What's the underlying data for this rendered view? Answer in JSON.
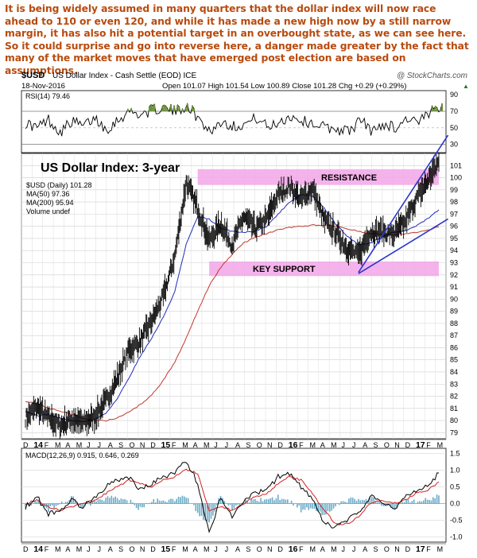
{
  "commentary": "It is being widely assumed in many quarters that the dollar index will now race ahead to 110 or even 120, and while it has made a new high now by a still narrow margin, it has also hit a potential target in an overbought state, as we can see here. So it could surprise and go into reverse here, a danger made greater by the fact that many of the market moves that have emerged post election are based on assumptions.",
  "header": {
    "symbol": "$USD",
    "name": "US Dollar Index - Cash Settle (EOD) ICE",
    "watermark": "@ StockCharts.com",
    "date": "18-Nov-2016",
    "ohlc": "Open 101.07  High 101.54  Low 100.89  Close 101.28  Chg +0.29 (+0.29%)",
    "change_marker": "▲"
  },
  "colors": {
    "price": "#000000",
    "ma50": "#1f2db8",
    "ma200": "#c0392b",
    "rsi_fill": "#6b8f3a",
    "zone": "#f2a6e8",
    "trendline": "#2b36c9",
    "title": "#2b36c9",
    "macd_hist": "#3b8fb5"
  },
  "months": [
    "D",
    "J",
    "F",
    "M",
    "A",
    "M",
    "J",
    "J",
    "A",
    "S",
    "O",
    "N",
    "D",
    "J",
    "F",
    "M",
    "A",
    "M",
    "J",
    "J",
    "A",
    "S",
    "O",
    "N",
    "D",
    "J",
    "F",
    "M",
    "A",
    "M",
    "J",
    "J",
    "A",
    "S",
    "O",
    "N",
    "D",
    "J",
    "F",
    "M"
  ],
  "month_year_labels": {
    "1": "14",
    "13": "15",
    "25": "16",
    "37": "17"
  },
  "chart_data": [
    {
      "type": "line",
      "panel": "RSI",
      "legend": "RSI(14) 79.46",
      "ylim": [
        20,
        95
      ],
      "yticks": [
        30,
        50,
        70,
        90
      ],
      "guides": [
        30,
        70
      ],
      "x": [
        0,
        1,
        2,
        3,
        4,
        5,
        6,
        7,
        8,
        9,
        10,
        11,
        12,
        13,
        14,
        15,
        16,
        17,
        18,
        19,
        20,
        21,
        22,
        23,
        24,
        25,
        26,
        27,
        28,
        29,
        30,
        31,
        32,
        33,
        34,
        35,
        36
      ],
      "values": [
        56,
        50,
        60,
        45,
        58,
        52,
        62,
        48,
        60,
        70,
        66,
        72,
        74,
        70,
        78,
        60,
        46,
        58,
        52,
        55,
        62,
        50,
        58,
        64,
        58,
        55,
        50,
        48,
        46,
        60,
        45,
        55,
        50,
        62,
        56,
        68,
        79.46
      ]
    },
    {
      "type": "line",
      "panel": "Price",
      "title": "US Dollar Index: 3-year",
      "legend": [
        "$USD (Daily) 101.28",
        "MA(50) 97.36",
        "MA(200) 95.94",
        "Volume undef"
      ],
      "ylim": [
        78.5,
        102
      ],
      "yticks": [
        79,
        80,
        81,
        82,
        83,
        84,
        85,
        86,
        87,
        88,
        89,
        90,
        91,
        92,
        93,
        94,
        95,
        96,
        97,
        98,
        99,
        100,
        101
      ],
      "x": [
        0,
        1,
        2,
        3,
        4,
        5,
        6,
        7,
        8,
        9,
        10,
        11,
        12,
        13,
        14,
        15,
        16,
        17,
        18,
        19,
        20,
        21,
        22,
        23,
        24,
        25,
        26,
        27,
        28,
        29,
        30,
        31,
        32,
        33,
        34,
        35,
        36
      ],
      "series": [
        {
          "name": "$USD (Daily) 101.28",
          "values": [
            80.2,
            81.1,
            80.2,
            79.6,
            80.1,
            79.8,
            80.3,
            81.6,
            83.5,
            85.8,
            86.5,
            88.2,
            90.2,
            93.5,
            99.6,
            97.5,
            94.8,
            96.2,
            94.5,
            96.8,
            95.8,
            96.6,
            98.6,
            99.3,
            98.2,
            99.1,
            96.5,
            95.5,
            94.2,
            93.6,
            95.5,
            95.6,
            95.3,
            96.2,
            98.2,
            99.7,
            101.28
          ]
        },
        {
          "name": "MA(50) 97.36",
          "values": [
            80.8,
            80.4,
            80.5,
            80.2,
            80.0,
            79.9,
            80.1,
            80.6,
            81.8,
            83.5,
            85.3,
            86.8,
            88.5,
            90.6,
            94.5,
            96.8,
            96.6,
            95.8,
            95.6,
            95.5,
            95.6,
            96.0,
            97.0,
            98.0,
            98.6,
            98.5,
            97.5,
            96.2,
            95.2,
            94.5,
            94.6,
            95.1,
            95.5,
            95.6,
            96.0,
            96.6,
            97.36
          ]
        },
        {
          "name": "MA(200) 95.94",
          "values": [
            81.6,
            81.4,
            81.0,
            80.8,
            80.5,
            80.2,
            80.0,
            80.0,
            80.2,
            80.7,
            81.3,
            82.1,
            83.3,
            84.8,
            86.8,
            89.0,
            91.1,
            92.6,
            93.7,
            94.6,
            95.1,
            95.4,
            95.7,
            95.9,
            96.0,
            96.1,
            96.1,
            96.0,
            95.8,
            95.6,
            95.4,
            95.3,
            95.3,
            95.4,
            95.5,
            95.7,
            95.94
          ]
        }
      ],
      "zones": [
        {
          "label": "RESISTANCE",
          "from": 99.4,
          "to": 100.7,
          "x_from": 15,
          "x_to": 36
        },
        {
          "label": "KEY SUPPORT",
          "from": 91.9,
          "to": 93.1,
          "x_from": 16,
          "x_to": 36
        }
      ],
      "trendlines": [
        {
          "x": [
            29,
            36.8
          ],
          "y": [
            92.2,
            103.5
          ]
        },
        {
          "x": [
            29,
            36.8
          ],
          "y": [
            92.1,
            96.6
          ]
        }
      ]
    },
    {
      "type": "line",
      "panel": "MACD",
      "legend": "MACD(12,26,9) 0.915, 0.646, 0.269",
      "ylim": [
        -1.15,
        1.65
      ],
      "yticks": [
        -1.0,
        -0.5,
        0.0,
        0.5,
        1.0,
        1.5
      ],
      "x": [
        0,
        1,
        2,
        3,
        4,
        5,
        6,
        7,
        8,
        9,
        10,
        11,
        12,
        13,
        14,
        15,
        16,
        17,
        18,
        19,
        20,
        21,
        22,
        23,
        24,
        25,
        26,
        27,
        28,
        29,
        30,
        31,
        32,
        33,
        34,
        35,
        36
      ],
      "series": [
        {
          "name": "MACD(12,26,9) 0.915",
          "values": [
            -0.1,
            0.2,
            -0.3,
            -0.2,
            0.1,
            -0.1,
            0.2,
            0.5,
            0.7,
            0.8,
            0.4,
            0.6,
            0.8,
            0.9,
            1.3,
            0.6,
            -0.9,
            0.2,
            -0.4,
            0.1,
            0.3,
            0.4,
            0.8,
            0.9,
            0.5,
            0.1,
            -0.6,
            -0.7,
            -0.5,
            -0.3,
            0.2,
            0.1,
            -0.2,
            0.2,
            0.4,
            0.5,
            0.915
          ]
        },
        {
          "name": "0.646",
          "values": [
            0.0,
            0.1,
            -0.1,
            -0.2,
            -0.1,
            0.0,
            0.1,
            0.3,
            0.5,
            0.7,
            0.6,
            0.5,
            0.7,
            0.8,
            1.0,
            0.9,
            -0.2,
            -0.1,
            -0.2,
            0.0,
            0.2,
            0.3,
            0.6,
            0.8,
            0.7,
            0.3,
            -0.2,
            -0.6,
            -0.6,
            -0.4,
            0.0,
            0.1,
            0.0,
            0.1,
            0.3,
            0.4,
            0.646
          ]
        }
      ]
    }
  ]
}
